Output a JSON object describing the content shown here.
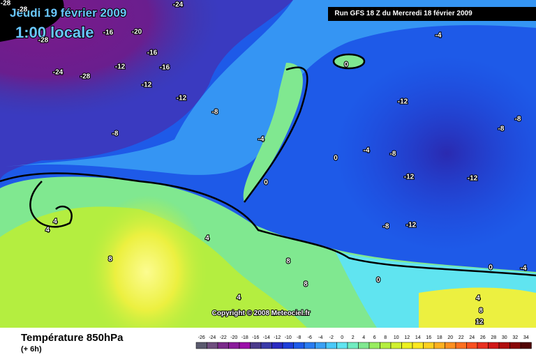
{
  "header": {
    "date": "Jeudi 19 février 2009",
    "time": "1:00 locale",
    "run": "Run GFS 18 Z du Mercredi 18 février 2009"
  },
  "copyright": "Copyright © 2008 Meteociel.fr",
  "footer": {
    "title": "Température 850hPa",
    "subtitle": "(+ 6h)"
  },
  "contour_labels": [
    -28,
    -28,
    -24,
    -16,
    -20,
    -28,
    -16,
    -12,
    -16,
    -24,
    -28,
    -12,
    -12,
    -8,
    -8,
    -4,
    -4,
    0,
    -12,
    -8,
    -8,
    -4,
    -8,
    0,
    0,
    -12,
    -12,
    -8,
    -12,
    4,
    4,
    4,
    8,
    8,
    8,
    0,
    0,
    -4,
    4,
    4,
    8,
    12
  ],
  "legend": {
    "labels": [
      -26,
      -24,
      -22,
      -20,
      -18,
      -16,
      -14,
      -12,
      -10,
      -8,
      -6,
      -4,
      -2,
      0,
      2,
      4,
      6,
      8,
      10,
      12,
      14,
      16,
      18,
      20,
      22,
      24,
      26,
      28,
      30,
      32,
      34
    ],
    "colors": [
      "#5a5a6e",
      "#6e4e7e",
      "#7a2a8a",
      "#8a1c9a",
      "#9a10a8",
      "#4a3a8a",
      "#3a3aa8",
      "#2a2ac0",
      "#1e3ed8",
      "#1e5ae8",
      "#2a7cf0",
      "#3aa0f4",
      "#4ac8f8",
      "#60e4f0",
      "#70ecc0",
      "#80e890",
      "#98ec60",
      "#b4ee40",
      "#d0f030",
      "#ecf020",
      "#fce820",
      "#fcd020",
      "#fcb020",
      "#fc9020",
      "#fc7020",
      "#f85020",
      "#e83020",
      "#d01818",
      "#b01010",
      "#880808",
      "#500404"
    ]
  }
}
